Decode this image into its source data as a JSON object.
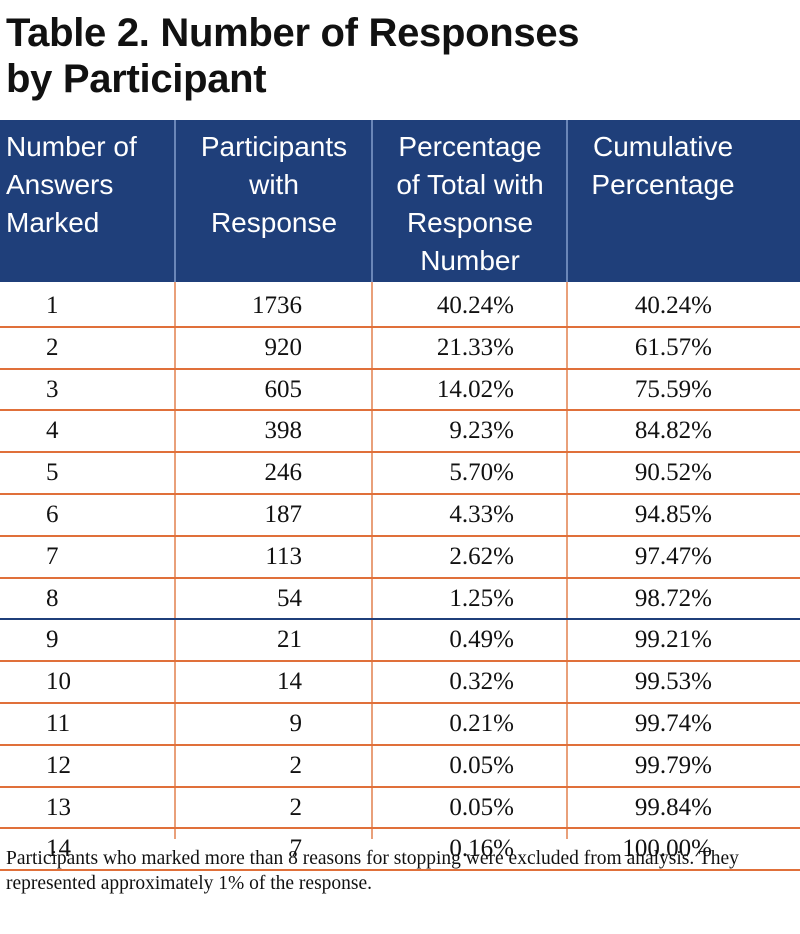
{
  "title_line1": "Table 2.  Number of Responses",
  "title_line2": "by Participant",
  "headers": [
    [
      "Number of",
      "Answers",
      "Marked"
    ],
    [
      "Participants",
      "with",
      "Response"
    ],
    [
      "Percentage",
      "of Total with",
      "Response",
      "Number"
    ],
    [
      "Cumulative",
      "Percentage"
    ]
  ],
  "rows": [
    [
      "1",
      "1736",
      "40.24%",
      "40.24%"
    ],
    [
      "2",
      "920",
      "21.33%",
      "61.57%"
    ],
    [
      "3",
      "605",
      "14.02%",
      "75.59%"
    ],
    [
      "4",
      "398",
      "9.23%",
      "84.82%"
    ],
    [
      "5",
      "246",
      "5.70%",
      "90.52%"
    ],
    [
      "6",
      "187",
      "4.33%",
      "94.85%"
    ],
    [
      "7",
      "113",
      "2.62%",
      "97.47%"
    ],
    [
      "8",
      "54",
      "1.25%",
      "98.72%"
    ],
    [
      "9",
      "21",
      "0.49%",
      "99.21%"
    ],
    [
      "10",
      "14",
      "0.32%",
      "99.53%"
    ],
    [
      "11",
      "9",
      "0.21%",
      "99.74%"
    ],
    [
      "12",
      "2",
      "0.05%",
      "99.79%"
    ],
    [
      "13",
      "2",
      "0.05%",
      "99.84%"
    ],
    [
      "14",
      "7",
      "0.16%",
      "100.00%"
    ]
  ],
  "footnote": "Participants who marked more than 8 reasons for stopping were excluded from analysis.  They represented approximately 1% of the response.",
  "colors": {
    "header_bg": "#1f3f7a",
    "row_rule": "#e0703a",
    "divider_rule": "#1f3f7a"
  }
}
